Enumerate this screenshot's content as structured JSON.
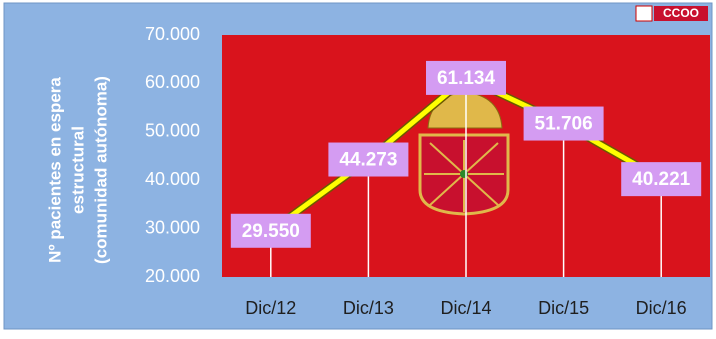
{
  "chart_data": {
    "type": "line",
    "brand": "CCOO",
    "y_label": [
      "Nº pacientes en espera",
      "estructural",
      "(comunidad autónoma)"
    ],
    "categories": [
      "Dic/12",
      "Dic/13",
      "Dic/14",
      "Dic/15",
      "Dic/16"
    ],
    "values": [
      29550,
      44273,
      61134,
      51706,
      40221
    ],
    "value_labels": [
      "29.550",
      "44.273",
      "61.134",
      "51.706",
      "40.221"
    ],
    "color": "#ffff00",
    "ylim": [
      20000,
      70000
    ],
    "yticks": [
      {
        "value": 20000,
        "label": "20.000"
      },
      {
        "value": 30000,
        "label": "30.000"
      },
      {
        "value": 40000,
        "label": "40.000"
      },
      {
        "value": 50000,
        "label": "50.000"
      },
      {
        "value": 60000,
        "label": "60.000"
      },
      {
        "value": 70000,
        "label": "70.000"
      }
    ]
  }
}
